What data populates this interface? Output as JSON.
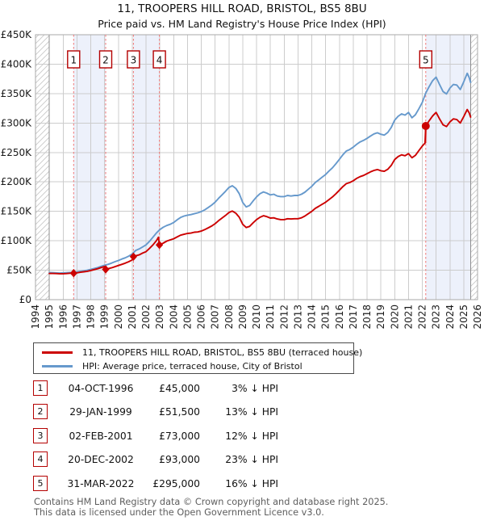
{
  "title": "11, TROOPERS HILL ROAD, BRISTOL, BS5 8BU",
  "subtitle": "Price paid vs. HM Land Registry's House Price Index (HPI)",
  "colors": {
    "property_line": "#cc0000",
    "hpi_line": "#6699cc",
    "ownership_band": "#edf1fb",
    "marker_dashed_line": "#f07575",
    "marker_box_border": "#b40000",
    "grid": "#cccccc",
    "plot_border": "#a9a9a9",
    "hatch": "#c9c9c9",
    "footer_text": "#5e5e5e"
  },
  "chart_data": {
    "type": "line",
    "title": "11, TROOPERS HILL ROAD, BRISTOL, BS5 8BU",
    "subtitle": "Price paid vs. HM Land Registry's House Price Index (HPI)",
    "xlabel": "",
    "ylabel": "",
    "grid": true,
    "legend_position": "below",
    "x_range": [
      1994,
      2026
    ],
    "y_range_k": [
      0,
      450
    ],
    "y_tick_labels": [
      "£0",
      "£50K",
      "£100K",
      "£150K",
      "£200K",
      "£250K",
      "£300K",
      "£350K",
      "£400K",
      "£450K"
    ],
    "x_ticks": [
      "1994",
      "1995",
      "1996",
      "1997",
      "1998",
      "1999",
      "2000",
      "2001",
      "2002",
      "2003",
      "2004",
      "2005",
      "2006",
      "2007",
      "2008",
      "2009",
      "2010",
      "2011",
      "2012",
      "2013",
      "2014",
      "2015",
      "2016",
      "2017",
      "2018",
      "2019",
      "2020",
      "2021",
      "2022",
      "2023",
      "2024",
      "2025",
      "2026"
    ],
    "series": [
      {
        "name": "11, TROOPERS HILL ROAD, BRISTOL, BS5 8BU (terraced house)",
        "color": "#cc0000",
        "points_k": [
          [
            1995.0,
            44.5
          ],
          [
            1995.25,
            44.5
          ],
          [
            1995.5,
            44.3
          ],
          [
            1995.75,
            44
          ],
          [
            1996.0,
            44
          ],
          [
            1996.25,
            44.3
          ],
          [
            1996.5,
            44.8
          ],
          [
            1996.76,
            45
          ],
          [
            1997.0,
            45.5
          ],
          [
            1997.25,
            46.5
          ],
          [
            1997.5,
            47.3
          ],
          [
            1997.75,
            48.2
          ],
          [
            1998.0,
            49.5
          ],
          [
            1998.25,
            51
          ],
          [
            1998.5,
            52.5
          ],
          [
            1998.75,
            54.5
          ],
          [
            1999.0,
            56.3
          ],
          [
            1999.08,
            51.5
          ],
          [
            1999.25,
            52.5
          ],
          [
            1999.5,
            54
          ],
          [
            1999.75,
            56
          ],
          [
            2000.0,
            58
          ],
          [
            2000.25,
            60
          ],
          [
            2000.5,
            62
          ],
          [
            2000.75,
            64.5
          ],
          [
            2001.0,
            67.5
          ],
          [
            2001.09,
            73
          ],
          [
            2001.25,
            74.5
          ],
          [
            2001.5,
            76
          ],
          [
            2001.75,
            79
          ],
          [
            2002.0,
            81.5
          ],
          [
            2002.25,
            87
          ],
          [
            2002.5,
            93
          ],
          [
            2002.75,
            100
          ],
          [
            2002.9,
            106
          ],
          [
            2002.97,
            93
          ],
          [
            2003.25,
            96
          ],
          [
            2003.5,
            99.5
          ],
          [
            2003.75,
            101.5
          ],
          [
            2004.0,
            103.5
          ],
          [
            2004.25,
            106.5
          ],
          [
            2004.5,
            109.5
          ],
          [
            2004.75,
            111
          ],
          [
            2005.0,
            112.5
          ],
          [
            2005.25,
            113
          ],
          [
            2005.5,
            114.5
          ],
          [
            2005.75,
            115
          ],
          [
            2006.0,
            116.5
          ],
          [
            2006.25,
            119
          ],
          [
            2006.5,
            122
          ],
          [
            2006.75,
            125
          ],
          [
            2007.0,
            129
          ],
          [
            2007.25,
            134
          ],
          [
            2007.5,
            138.5
          ],
          [
            2007.75,
            143
          ],
          [
            2008.0,
            148
          ],
          [
            2008.25,
            150.5
          ],
          [
            2008.5,
            147
          ],
          [
            2008.75,
            140
          ],
          [
            2009.0,
            128
          ],
          [
            2009.25,
            122.5
          ],
          [
            2009.5,
            124.5
          ],
          [
            2009.75,
            130.5
          ],
          [
            2010.0,
            136
          ],
          [
            2010.25,
            140
          ],
          [
            2010.5,
            142.5
          ],
          [
            2010.75,
            141
          ],
          [
            2011.0,
            138.5
          ],
          [
            2011.25,
            139
          ],
          [
            2011.5,
            137
          ],
          [
            2011.75,
            136
          ],
          [
            2012.0,
            136
          ],
          [
            2012.25,
            137.5
          ],
          [
            2012.5,
            137
          ],
          [
            2012.75,
            137.5
          ],
          [
            2013.0,
            137.5
          ],
          [
            2013.25,
            139
          ],
          [
            2013.5,
            142
          ],
          [
            2013.75,
            146
          ],
          [
            2014.0,
            150
          ],
          [
            2014.25,
            155
          ],
          [
            2014.5,
            158.5
          ],
          [
            2014.75,
            162
          ],
          [
            2015.0,
            165.5
          ],
          [
            2015.25,
            170
          ],
          [
            2015.5,
            174.5
          ],
          [
            2015.75,
            180
          ],
          [
            2016.0,
            186
          ],
          [
            2016.25,
            192
          ],
          [
            2016.5,
            197
          ],
          [
            2016.75,
            199
          ],
          [
            2017.0,
            202
          ],
          [
            2017.25,
            206
          ],
          [
            2017.5,
            209
          ],
          [
            2017.75,
            211
          ],
          [
            2018.0,
            214
          ],
          [
            2018.25,
            217
          ],
          [
            2018.5,
            219.5
          ],
          [
            2018.75,
            221
          ],
          [
            2019.0,
            219
          ],
          [
            2019.25,
            218
          ],
          [
            2019.5,
            221.5
          ],
          [
            2019.75,
            228
          ],
          [
            2020.0,
            238
          ],
          [
            2020.25,
            243
          ],
          [
            2020.5,
            246
          ],
          [
            2020.75,
            244.5
          ],
          [
            2021.0,
            248
          ],
          [
            2021.25,
            241
          ],
          [
            2021.5,
            245
          ],
          [
            2021.75,
            253
          ],
          [
            2022.0,
            261
          ],
          [
            2022.2,
            266
          ],
          [
            2022.25,
            295
          ],
          [
            2022.5,
            304
          ],
          [
            2022.75,
            312
          ],
          [
            2023.0,
            318
          ],
          [
            2023.25,
            307
          ],
          [
            2023.5,
            297
          ],
          [
            2023.75,
            294
          ],
          [
            2024.0,
            302
          ],
          [
            2024.25,
            307
          ],
          [
            2024.5,
            306
          ],
          [
            2024.75,
            300
          ],
          [
            2025.0,
            311
          ],
          [
            2025.25,
            323
          ],
          [
            2025.4,
            317
          ],
          [
            2025.5,
            310
          ]
        ]
      },
      {
        "name": "HPI: Average price, terraced house, City of Bristol",
        "color": "#6699cc",
        "points_k": [
          [
            1995.0,
            46
          ],
          [
            1995.25,
            45.8
          ],
          [
            1995.5,
            45.6
          ],
          [
            1995.75,
            45.2
          ],
          [
            1996.0,
            45.5
          ],
          [
            1996.25,
            45.8
          ],
          [
            1996.5,
            46.2
          ],
          [
            1996.76,
            46.4
          ],
          [
            1997.0,
            47
          ],
          [
            1997.25,
            48
          ],
          [
            1997.5,
            49
          ],
          [
            1997.75,
            50
          ],
          [
            1998.0,
            51.5
          ],
          [
            1998.25,
            53
          ],
          [
            1998.5,
            54.5
          ],
          [
            1998.75,
            56.5
          ],
          [
            1999.0,
            58.5
          ],
          [
            1999.25,
            60
          ],
          [
            1999.5,
            62
          ],
          [
            1999.75,
            64.5
          ],
          [
            2000.0,
            66.5
          ],
          [
            2000.25,
            69
          ],
          [
            2000.5,
            71
          ],
          [
            2000.75,
            74
          ],
          [
            2001.0,
            77.5
          ],
          [
            2001.25,
            83.5
          ],
          [
            2001.5,
            86
          ],
          [
            2001.75,
            89.5
          ],
          [
            2002.0,
            93
          ],
          [
            2002.25,
            99
          ],
          [
            2002.5,
            106
          ],
          [
            2002.75,
            113
          ],
          [
            2003.0,
            119
          ],
          [
            2003.25,
            123
          ],
          [
            2003.5,
            126
          ],
          [
            2003.75,
            128
          ],
          [
            2004.0,
            131
          ],
          [
            2004.25,
            135.5
          ],
          [
            2004.5,
            139.5
          ],
          [
            2004.75,
            142
          ],
          [
            2005.0,
            143.5
          ],
          [
            2005.25,
            144.5
          ],
          [
            2005.5,
            146
          ],
          [
            2005.75,
            147.5
          ],
          [
            2006.0,
            149.5
          ],
          [
            2006.25,
            152.5
          ],
          [
            2006.5,
            156.5
          ],
          [
            2006.75,
            160.5
          ],
          [
            2007.0,
            165.5
          ],
          [
            2007.25,
            172
          ],
          [
            2007.5,
            178
          ],
          [
            2007.75,
            184
          ],
          [
            2008.0,
            190.5
          ],
          [
            2008.25,
            193.5
          ],
          [
            2008.5,
            189
          ],
          [
            2008.75,
            180
          ],
          [
            2009.0,
            165
          ],
          [
            2009.25,
            157.5
          ],
          [
            2009.5,
            160
          ],
          [
            2009.75,
            167.5
          ],
          [
            2010.0,
            174.5
          ],
          [
            2010.25,
            180
          ],
          [
            2010.5,
            183
          ],
          [
            2010.75,
            181
          ],
          [
            2011.0,
            178
          ],
          [
            2011.25,
            179
          ],
          [
            2011.5,
            176
          ],
          [
            2011.75,
            175
          ],
          [
            2012.0,
            175
          ],
          [
            2012.25,
            177
          ],
          [
            2012.5,
            176
          ],
          [
            2012.75,
            177
          ],
          [
            2013.0,
            177
          ],
          [
            2013.25,
            179
          ],
          [
            2013.5,
            182.5
          ],
          [
            2013.75,
            187.5
          ],
          [
            2014.0,
            192.5
          ],
          [
            2014.25,
            199
          ],
          [
            2014.5,
            203.5
          ],
          [
            2014.75,
            208
          ],
          [
            2015.0,
            212.5
          ],
          [
            2015.25,
            218.5
          ],
          [
            2015.5,
            224
          ],
          [
            2015.75,
            231
          ],
          [
            2016.0,
            238.5
          ],
          [
            2016.25,
            246
          ],
          [
            2016.5,
            252.5
          ],
          [
            2016.75,
            255
          ],
          [
            2017.0,
            259
          ],
          [
            2017.25,
            264
          ],
          [
            2017.5,
            268
          ],
          [
            2017.75,
            270.5
          ],
          [
            2018.0,
            274
          ],
          [
            2018.25,
            278
          ],
          [
            2018.5,
            281.5
          ],
          [
            2018.75,
            283.5
          ],
          [
            2019.0,
            281
          ],
          [
            2019.25,
            279.5
          ],
          [
            2019.5,
            284
          ],
          [
            2019.75,
            292.5
          ],
          [
            2020.0,
            305
          ],
          [
            2020.25,
            311.5
          ],
          [
            2020.5,
            315.5
          ],
          [
            2020.75,
            313.5
          ],
          [
            2021.0,
            318
          ],
          [
            2021.25,
            309
          ],
          [
            2021.5,
            314
          ],
          [
            2021.75,
            324
          ],
          [
            2022.0,
            335
          ],
          [
            2022.25,
            351
          ],
          [
            2022.5,
            362
          ],
          [
            2022.75,
            372
          ],
          [
            2023.0,
            378
          ],
          [
            2023.25,
            365.5
          ],
          [
            2023.5,
            353.5
          ],
          [
            2023.75,
            349.5
          ],
          [
            2024.0,
            359.5
          ],
          [
            2024.25,
            365.5
          ],
          [
            2024.5,
            364.5
          ],
          [
            2024.75,
            357
          ],
          [
            2025.0,
            370
          ],
          [
            2025.25,
            384.5
          ],
          [
            2025.4,
            377
          ],
          [
            2025.5,
            369
          ]
        ]
      }
    ],
    "markers": [
      {
        "label": "1",
        "x": 1996.76,
        "value_k": 45,
        "shape": "diamond"
      },
      {
        "label": "2",
        "x": 1999.08,
        "value_k": 51.5,
        "shape": "diamond"
      },
      {
        "label": "3",
        "x": 2001.09,
        "value_k": 73,
        "shape": "diamond"
      },
      {
        "label": "4",
        "x": 2002.97,
        "value_k": 93,
        "shape": "diamond"
      },
      {
        "label": "5",
        "x": 2022.25,
        "value_k": 295,
        "shape": "circle"
      }
    ],
    "ownership_bands": [
      [
        1996.76,
        1999.08
      ],
      [
        2001.09,
        2002.97
      ],
      [
        2022.25,
        2025.5
      ]
    ],
    "hatched_regions": [
      [
        1994,
        1995
      ],
      [
        2025.5,
        2026
      ]
    ],
    "jump_connector": {
      "x": 2022.25,
      "from_k": 266,
      "to_k": 295
    }
  },
  "legend": {
    "rows": [
      {
        "label": "11, TROOPERS HILL ROAD, BRISTOL, BS5 8BU (terraced house)"
      },
      {
        "label": "HPI: Average price, terraced house, City of Bristol"
      }
    ]
  },
  "table": {
    "rows": [
      {
        "num": "1",
        "date": "04-OCT-1996",
        "price": "£45,000",
        "vs_hpi": "3% ↓ HPI"
      },
      {
        "num": "2",
        "date": "29-JAN-1999",
        "price": "£51,500",
        "vs_hpi": "13% ↓ HPI"
      },
      {
        "num": "3",
        "date": "02-FEB-2001",
        "price": "£73,000",
        "vs_hpi": "12% ↓ HPI"
      },
      {
        "num": "4",
        "date": "20-DEC-2002",
        "price": "£93,000",
        "vs_hpi": "23% ↓ HPI"
      },
      {
        "num": "5",
        "date": "31-MAR-2022",
        "price": "£295,000",
        "vs_hpi": "16% ↓ HPI"
      }
    ]
  },
  "footer": {
    "line1": "Contains HM Land Registry data © Crown copyright and database right 2025.",
    "line2": "This data is licensed under the Open Government Licence v3.0."
  }
}
